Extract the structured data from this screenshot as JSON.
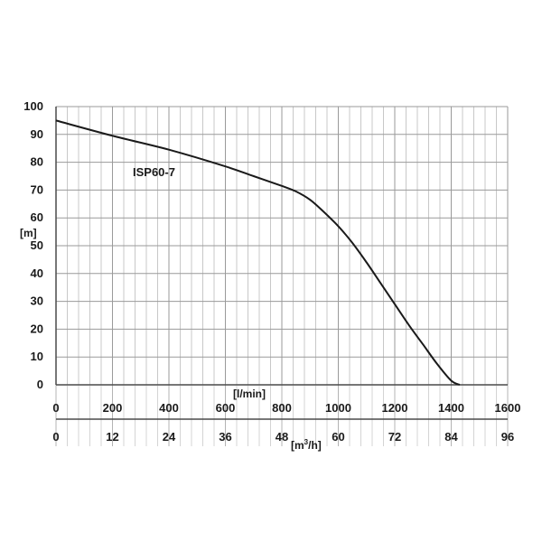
{
  "chart_data": {
    "type": "line",
    "ylabel": "[m]",
    "ylim": [
      0,
      100
    ],
    "yticks": [
      "0",
      "10",
      "20",
      "30",
      "40",
      "50",
      "60",
      "70",
      "80",
      "90",
      "100"
    ],
    "x_primary": {
      "label": "[l/min]",
      "range": [
        0,
        1600
      ],
      "ticks": [
        "0",
        "200",
        "400",
        "600",
        "800",
        "1000",
        "1200",
        "1400",
        "1600"
      ]
    },
    "x_secondary": {
      "label_base": "[m",
      "label_sup": "3",
      "label_tail": "/h]",
      "range": [
        0,
        96
      ],
      "ticks": [
        "0",
        "12",
        "24",
        "36",
        "48",
        "60",
        "72",
        "84",
        "96"
      ]
    },
    "grid": true,
    "series": [
      {
        "name": "ISP60-7",
        "color": "#1a1a1a",
        "x": [
          0,
          200,
          400,
          600,
          700,
          800,
          850,
          900,
          950,
          1000,
          1050,
          1100,
          1150,
          1200,
          1250,
          1300,
          1350,
          1400,
          1430
        ],
        "y": [
          95,
          89.5,
          84.5,
          78.5,
          75,
          71.5,
          69.5,
          66.5,
          62,
          57,
          51,
          44,
          36.5,
          29,
          21.5,
          14.5,
          7.5,
          1.5,
          0
        ]
      }
    ]
  }
}
